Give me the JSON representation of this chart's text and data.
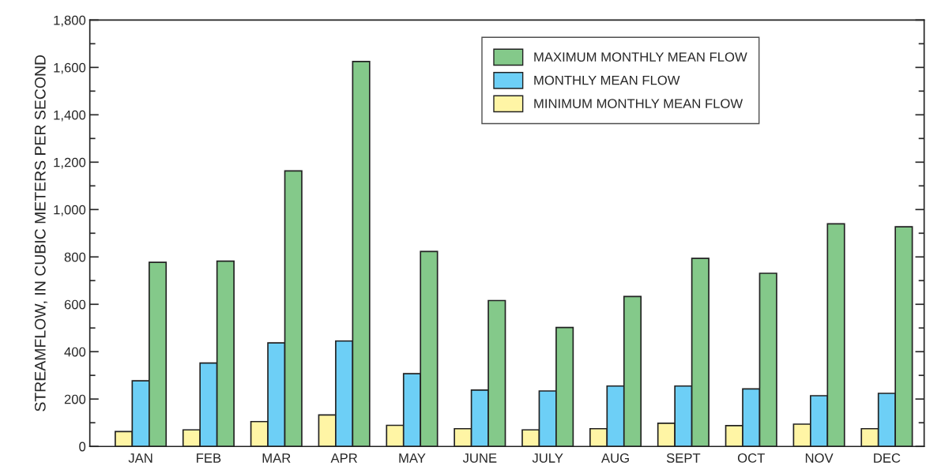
{
  "chart_data": {
    "type": "bar",
    "ylabel": "STREAMFLOW, IN CUBIC METERS PER SECOND",
    "categories": [
      "JAN",
      "FEB",
      "MAR",
      "APR",
      "MAY",
      "JUNE",
      "JULY",
      "AUG",
      "SEPT",
      "OCT",
      "NOV",
      "DEC"
    ],
    "series": [
      {
        "name": "MINIMUM MONTHLY MEAN FLOW",
        "color": "#fff5a5",
        "values": [
          63,
          70,
          105,
          133,
          89,
          75,
          70,
          75,
          98,
          88,
          94,
          75
        ]
      },
      {
        "name": "MONTHLY MEAN FLOW",
        "color": "#6dcff6",
        "values": [
          277,
          352,
          437,
          445,
          307,
          238,
          234,
          255,
          255,
          243,
          214,
          224
        ]
      },
      {
        "name": "MAXIMUM MONTHLY MEAN FLOW",
        "color": "#84c98a",
        "values": [
          777,
          782,
          1163,
          1625,
          823,
          616,
          502,
          633,
          794,
          731,
          940,
          927
        ]
      }
    ],
    "ylim": [
      0,
      1800
    ],
    "yticks": [
      0,
      {
        "value": 200,
        "label": "200"
      },
      {
        "value": 400,
        "label": "400"
      },
      {
        "value": 600,
        "label": "600"
      },
      {
        "value": 800,
        "label": "800"
      },
      {
        "value": 1000,
        "label": "1,000"
      },
      {
        "value": 1200,
        "label": "1,200"
      },
      {
        "value": 1400,
        "label": "1,400"
      },
      {
        "value": 1600,
        "label": "1,600"
      },
      {
        "value": 1800,
        "label": "1,800"
      }
    ],
    "grid": false,
    "legend": "top right"
  }
}
